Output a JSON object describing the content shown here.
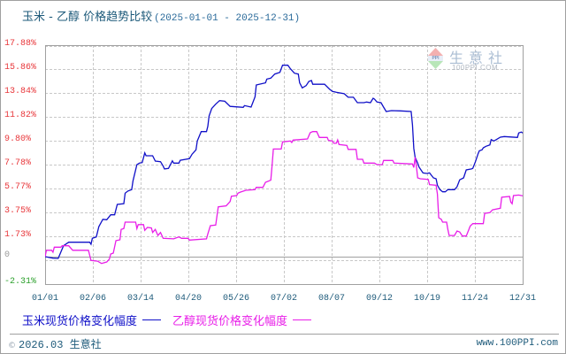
{
  "title": {
    "main": "玉米 - 乙醇 价格趋势比较",
    "range": "(2025-01-01 - 2025-12-31)"
  },
  "watermark": {
    "logo_text": "PPI",
    "brand": "生意社",
    "site": "100PPI.COM"
  },
  "legend": [
    {
      "label": "玉米现货价格变化幅度",
      "color": "#1010c8"
    },
    {
      "label": "乙醇现货价格变化幅度",
      "color": "#e81ee8"
    }
  ],
  "footer": {
    "copyright_symbol": "©",
    "copyright": "2026.03 生意社",
    "site": "www.100PPI.com"
  },
  "colors": {
    "title": "#1d5a7a",
    "positive_tick": "#e8383c",
    "zero_tick": "#999999",
    "negative_tick": "#2ca02c",
    "grid": "#c8c8c8",
    "axis": "#a0a0a0"
  },
  "chart_data": {
    "type": "line",
    "title": "玉米 - 乙醇 价格趋势比较 (2025-01-01 - 2025-12-31)",
    "xlabel": "",
    "ylabel": "",
    "ylim": [
      -2.31,
      17.88
    ],
    "grid": true,
    "legend_position": "bottom",
    "x_ticks": [
      "01/01",
      "02/06",
      "03/14",
      "04/20",
      "05/26",
      "07/02",
      "08/07",
      "09/12",
      "10/19",
      "11/24",
      "12/31"
    ],
    "y_ticks": [
      {
        "label": "17.88%",
        "value": 17.88
      },
      {
        "label": "15.86%",
        "value": 15.86
      },
      {
        "label": "13.84%",
        "value": 13.84
      },
      {
        "label": "11.82%",
        "value": 11.82
      },
      {
        "label": "9.80%",
        "value": 9.8
      },
      {
        "label": "7.78%",
        "value": 7.78
      },
      {
        "label": "5.77%",
        "value": 5.77
      },
      {
        "label": "3.75%",
        "value": 3.75
      },
      {
        "label": "1.73%",
        "value": 1.73
      },
      {
        "label": "0",
        "value": 0
      },
      {
        "label": "-2.31%",
        "value": -2.31
      }
    ],
    "series": [
      {
        "name": "玉米现货价格变化幅度",
        "color": "#1010c8",
        "points": [
          [
            "01/01",
            0.0
          ],
          [
            "01/07",
            -0.13
          ],
          [
            "01/11",
            -0.15
          ],
          [
            "01/15",
            0.92
          ],
          [
            "01/19",
            1.22
          ],
          [
            "02/04",
            1.22
          ],
          [
            "02/05",
            1.05
          ],
          [
            "02/06",
            1.55
          ],
          [
            "02/09",
            1.67
          ],
          [
            "02/11",
            2.54
          ],
          [
            "02/14",
            3.16
          ],
          [
            "02/17",
            3.12
          ],
          [
            "02/20",
            3.54
          ],
          [
            "02/23",
            3.54
          ],
          [
            "02/25",
            4.41
          ],
          [
            "03/02",
            4.47
          ],
          [
            "03/03",
            5.36
          ],
          [
            "03/05",
            5.54
          ],
          [
            "03/08",
            5.66
          ],
          [
            "03/09",
            6.41
          ],
          [
            "03/12",
            7.78
          ],
          [
            "03/14",
            7.91
          ],
          [
            "03/16",
            7.95
          ],
          [
            "03/18",
            8.77
          ],
          [
            "03/19",
            8.53
          ],
          [
            "03/24",
            8.53
          ],
          [
            "03/26",
            8.08
          ],
          [
            "03/30",
            8.03
          ],
          [
            "04/01",
            7.65
          ],
          [
            "04/02",
            7.41
          ],
          [
            "04/05",
            7.46
          ],
          [
            "04/08",
            8.1
          ],
          [
            "04/09",
            7.91
          ],
          [
            "04/13",
            7.91
          ],
          [
            "04/14",
            8.15
          ],
          [
            "04/21",
            8.28
          ],
          [
            "04/23",
            8.66
          ],
          [
            "04/26",
            9.03
          ],
          [
            "04/27",
            9.78
          ],
          [
            "04/30",
            10.57
          ],
          [
            "05/04",
            10.57
          ],
          [
            "05/05",
            11.02
          ],
          [
            "05/06",
            11.89
          ],
          [
            "05/08",
            12.52
          ],
          [
            "05/11",
            12.89
          ],
          [
            "05/14",
            13.19
          ],
          [
            "05/18",
            13.14
          ],
          [
            "05/22",
            12.7
          ],
          [
            "06/01",
            12.62
          ],
          [
            "06/02",
            12.77
          ],
          [
            "06/07",
            12.64
          ],
          [
            "06/10",
            13.52
          ],
          [
            "06/11",
            14.51
          ],
          [
            "06/18",
            14.69
          ],
          [
            "06/19",
            15.01
          ],
          [
            "06/22",
            15.09
          ],
          [
            "06/25",
            15.43
          ],
          [
            "06/29",
            15.58
          ],
          [
            "07/01",
            16.18
          ],
          [
            "07/05",
            16.18
          ],
          [
            "07/07",
            15.88
          ],
          [
            "07/10",
            15.51
          ],
          [
            "07/13",
            15.43
          ],
          [
            "07/14",
            14.69
          ],
          [
            "07/16",
            14.27
          ],
          [
            "07/19",
            14.46
          ],
          [
            "07/21",
            14.81
          ],
          [
            "07/23",
            14.89
          ],
          [
            "07/24",
            14.57
          ],
          [
            "08/02",
            14.57
          ],
          [
            "08/06",
            14.14
          ],
          [
            "08/08",
            13.97
          ],
          [
            "08/11",
            13.89
          ],
          [
            "08/17",
            13.77
          ],
          [
            "08/20",
            13.47
          ],
          [
            "08/24",
            13.47
          ],
          [
            "08/27",
            13.02
          ],
          [
            "09/01",
            13.02
          ],
          [
            "09/03",
            13.07
          ],
          [
            "09/06",
            13.02
          ],
          [
            "09/08",
            13.39
          ],
          [
            "09/09",
            13.32
          ],
          [
            "09/11",
            13.07
          ],
          [
            "09/14",
            13.02
          ],
          [
            "09/16",
            12.64
          ],
          [
            "09/18",
            12.27
          ],
          [
            "09/22",
            12.34
          ],
          [
            "09/29",
            12.32
          ],
          [
            "10/07",
            12.27
          ],
          [
            "10/08",
            11.15
          ],
          [
            "10/09",
            9.15
          ],
          [
            "10/10",
            8.4
          ],
          [
            "10/12",
            7.91
          ],
          [
            "10/13",
            7.58
          ],
          [
            "10/16",
            7.08
          ],
          [
            "10/19",
            7.03
          ],
          [
            "10/21",
            7.08
          ],
          [
            "10/24",
            6.66
          ],
          [
            "10/26",
            6.58
          ],
          [
            "10/27",
            6.04
          ],
          [
            "10/29",
            5.66
          ],
          [
            "10/31",
            5.48
          ],
          [
            "11/02",
            5.48
          ],
          [
            "11/04",
            5.66
          ],
          [
            "11/09",
            5.66
          ],
          [
            "11/11",
            5.91
          ],
          [
            "11/13",
            6.49
          ],
          [
            "11/16",
            6.66
          ],
          [
            "11/18",
            7.33
          ],
          [
            "11/22",
            7.41
          ],
          [
            "11/23",
            7.46
          ],
          [
            "11/25",
            8.03
          ],
          [
            "11/27",
            8.7
          ],
          [
            "11/28",
            8.95
          ],
          [
            "11/30",
            9.03
          ],
          [
            "12/01",
            9.2
          ],
          [
            "12/03",
            9.33
          ],
          [
            "12/06",
            9.45
          ],
          [
            "12/07",
            9.9
          ],
          [
            "12/09",
            9.78
          ],
          [
            "12/11",
            9.9
          ],
          [
            "12/14",
            10.1
          ],
          [
            "12/17",
            10.15
          ],
          [
            "12/27",
            10.08
          ],
          [
            "12/28",
            10.45
          ],
          [
            "12/30",
            10.53
          ],
          [
            "12/31",
            10.45
          ]
        ]
      },
      {
        "name": "乙醇现货价格变化幅度",
        "color": "#e81ee8",
        "points": [
          [
            "01/01",
            0.0
          ],
          [
            "01/02",
            0.54
          ],
          [
            "01/06",
            0.54
          ],
          [
            "01/07",
            0.37
          ],
          [
            "01/08",
            0.8
          ],
          [
            "01/13",
            0.8
          ],
          [
            "01/14",
            0.92
          ],
          [
            "01/19",
            0.92
          ],
          [
            "01/22",
            0.54
          ],
          [
            "02/03",
            0.54
          ],
          [
            "02/05",
            -0.32
          ],
          [
            "02/10",
            -0.38
          ],
          [
            "02/13",
            -0.58
          ],
          [
            "02/17",
            -0.45
          ],
          [
            "02/19",
            -0.2
          ],
          [
            "02/20",
            0.22
          ],
          [
            "02/22",
            0.3
          ],
          [
            "02/24",
            1.35
          ],
          [
            "02/27",
            1.42
          ],
          [
            "02/28",
            2.3
          ],
          [
            "03/02",
            2.37
          ],
          [
            "03/03",
            2.92
          ],
          [
            "03/11",
            2.92
          ],
          [
            "03/12",
            2.37
          ],
          [
            "03/13",
            2.71
          ],
          [
            "03/17",
            2.71
          ],
          [
            "03/18",
            2.22
          ],
          [
            "03/20",
            2.47
          ],
          [
            "03/23",
            2.42
          ],
          [
            "03/24",
            2.04
          ],
          [
            "03/26",
            2.3
          ],
          [
            "03/27",
            2.04
          ],
          [
            "03/28",
            1.79
          ],
          [
            "03/30",
            2.04
          ],
          [
            "04/01",
            1.55
          ],
          [
            "04/09",
            1.5
          ],
          [
            "04/13",
            1.67
          ],
          [
            "04/15",
            1.55
          ],
          [
            "04/20",
            1.55
          ],
          [
            "04/21",
            1.4
          ],
          [
            "05/04",
            1.5
          ],
          [
            "05/05",
            1.92
          ],
          [
            "05/07",
            2.62
          ],
          [
            "05/11",
            2.67
          ],
          [
            "05/13",
            4.21
          ],
          [
            "05/19",
            4.29
          ],
          [
            "05/22",
            4.66
          ],
          [
            "05/23",
            5.11
          ],
          [
            "05/27",
            5.16
          ],
          [
            "05/28",
            5.36
          ],
          [
            "05/30",
            5.46
          ],
          [
            "06/03",
            5.61
          ],
          [
            "06/10",
            5.66
          ],
          [
            "06/11",
            5.86
          ],
          [
            "06/16",
            5.86
          ],
          [
            "06/18",
            6.28
          ],
          [
            "06/22",
            6.46
          ],
          [
            "06/23",
            7.65
          ],
          [
            "06/24",
            9.1
          ],
          [
            "06/30",
            9.1
          ],
          [
            "07/01",
            9.7
          ],
          [
            "07/07",
            9.78
          ],
          [
            "07/08",
            9.65
          ],
          [
            "07/09",
            9.85
          ],
          [
            "07/20",
            9.95
          ],
          [
            "07/22",
            10.47
          ],
          [
            "07/24",
            10.57
          ],
          [
            "07/27",
            10.57
          ],
          [
            "07/29",
            10.08
          ],
          [
            "08/04",
            10.08
          ],
          [
            "08/05",
            9.82
          ],
          [
            "08/08",
            9.78
          ],
          [
            "08/09",
            9.58
          ],
          [
            "08/11",
            9.58
          ],
          [
            "08/12",
            9.87
          ],
          [
            "08/13",
            9.48
          ],
          [
            "08/19",
            9.4
          ],
          [
            "08/20",
            9.07
          ],
          [
            "08/26",
            9.07
          ],
          [
            "08/27",
            8.23
          ],
          [
            "08/31",
            8.23
          ],
          [
            "09/01",
            7.91
          ],
          [
            "09/09",
            7.91
          ],
          [
            "09/11",
            7.78
          ],
          [
            "09/15",
            7.78
          ],
          [
            "09/16",
            8.13
          ],
          [
            "09/23",
            8.13
          ],
          [
            "09/24",
            7.91
          ],
          [
            "10/08",
            7.83
          ],
          [
            "10/09",
            7.53
          ],
          [
            "10/10",
            8.4
          ],
          [
            "10/11",
            7.65
          ],
          [
            "10/12",
            6.66
          ],
          [
            "10/14",
            6.58
          ],
          [
            "10/20",
            6.53
          ],
          [
            "10/21",
            6.08
          ],
          [
            "10/26",
            6.04
          ],
          [
            "10/27",
            5.29
          ],
          [
            "10/28",
            3.29
          ],
          [
            "10/30",
            3.16
          ],
          [
            "10/31",
            2.92
          ],
          [
            "11/03",
            2.92
          ],
          [
            "11/04",
            2.3
          ],
          [
            "11/05",
            1.79
          ],
          [
            "11/09",
            1.79
          ],
          [
            "11/11",
            2.17
          ],
          [
            "11/13",
            2.09
          ],
          [
            "11/15",
            1.74
          ],
          [
            "11/18",
            1.74
          ],
          [
            "11/20",
            2.3
          ],
          [
            "11/21",
            2.59
          ],
          [
            "11/23",
            2.79
          ],
          [
            "12/01",
            2.79
          ],
          [
            "12/02",
            3.66
          ],
          [
            "12/06",
            3.72
          ],
          [
            "12/08",
            3.96
          ],
          [
            "12/14",
            4.09
          ],
          [
            "12/15",
            5.03
          ],
          [
            "12/21",
            5.09
          ],
          [
            "12/22",
            4.61
          ],
          [
            "12/23",
            4.47
          ],
          [
            "12/24",
            5.16
          ],
          [
            "12/28",
            5.21
          ],
          [
            "12/31",
            5.14
          ]
        ]
      }
    ]
  }
}
